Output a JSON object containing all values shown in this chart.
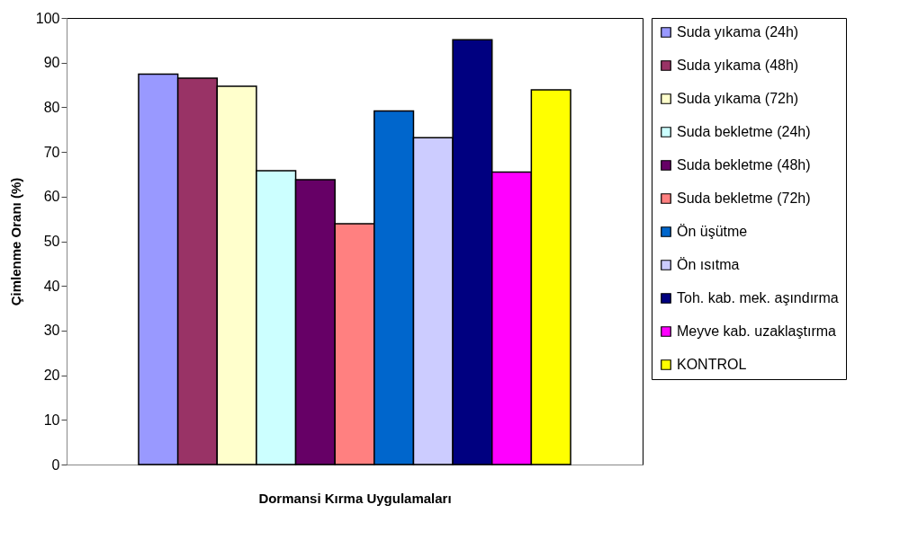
{
  "chart_data": {
    "type": "bar",
    "xlabel": "Dormansi Kırma Uygulamaları",
    "ylabel": "Çimlenme Oranı (%)",
    "categories": [
      null
    ],
    "series": [
      {
        "name": "Suda yıkama (24h)",
        "color": "#9999ff",
        "values": [
          87.4
        ]
      },
      {
        "name": "Suda yıkama (48h)",
        "color": "#993366",
        "values": [
          86.5
        ]
      },
      {
        "name": "Suda yıkama (72h)",
        "color": "#ffffcc",
        "values": [
          84.7
        ]
      },
      {
        "name": "Suda bekletme (24h)",
        "color": "#ccffff",
        "values": [
          65.8
        ]
      },
      {
        "name": "Suda bekletme (48h)",
        "color": "#660066",
        "values": [
          63.8
        ]
      },
      {
        "name": "Suda bekletme (72h)",
        "color": "#ff8080",
        "values": [
          53.9
        ]
      },
      {
        "name": "Ön üşütme",
        "color": "#0066cc",
        "values": [
          79.2
        ]
      },
      {
        "name": "Ön ısıtma",
        "color": "#ccccff",
        "values": [
          73.2
        ]
      },
      {
        "name": "Toh. kab. mek. aşındırma",
        "color": "#000080",
        "values": [
          95.1
        ]
      },
      {
        "name": "Meyve kab. uzaklaştırma",
        "color": "#ff00ff",
        "values": [
          65.5
        ]
      },
      {
        "name": "KONTROL",
        "color": "#ffff00",
        "values": [
          83.9
        ]
      }
    ],
    "ylim": [
      0,
      100
    ],
    "yticks": [
      0,
      10,
      20,
      30,
      40,
      50,
      60,
      70,
      80,
      90,
      100
    ],
    "legend": "right"
  }
}
